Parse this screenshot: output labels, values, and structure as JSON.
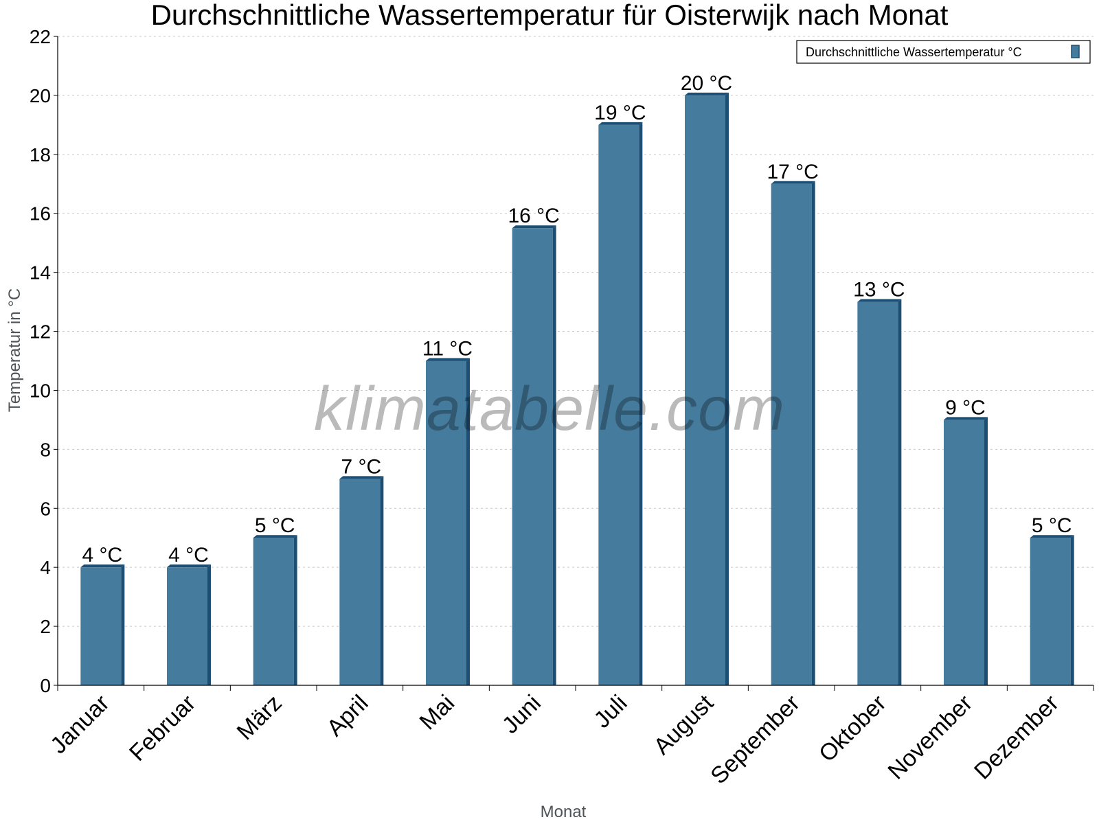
{
  "chart_data": {
    "type": "bar",
    "title": "Durchschnittliche Wassertemperatur für Oisterwijk nach Monat",
    "xlabel": "Monat",
    "ylabel": "Temperatur in °C",
    "ylim": [
      0,
      22
    ],
    "yticks": [
      0,
      2,
      4,
      6,
      8,
      10,
      12,
      14,
      16,
      18,
      20,
      22
    ],
    "grid": true,
    "legend_position": "top-right",
    "watermark": "klimatabelle.com",
    "categories": [
      "Januar",
      "Februar",
      "März",
      "April",
      "Mai",
      "Juni",
      "Juli",
      "August",
      "September",
      "Oktober",
      "November",
      "Dezember"
    ],
    "series": [
      {
        "name": "Durchschnittliche Wassertemperatur °C",
        "color": "#457b9d",
        "values": [
          4,
          4,
          5,
          7,
          11,
          15.5,
          19,
          20,
          17,
          13,
          9,
          5
        ],
        "labels": [
          "4 °C",
          "4 °C",
          "5 °C",
          "7 °C",
          "11 °C",
          "16 °C",
          "19 °C",
          "20 °C",
          "17 °C",
          "13 °C",
          "9 °C",
          "5 °C"
        ]
      }
    ]
  }
}
